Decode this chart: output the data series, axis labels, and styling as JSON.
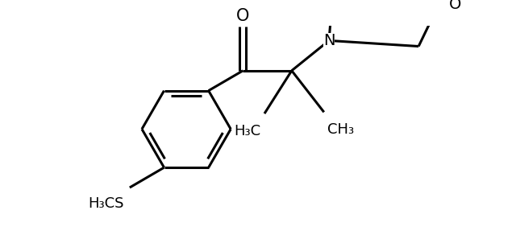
{
  "background": "#ffffff",
  "line_color": "#000000",
  "line_width": 2.2,
  "font_size": 13,
  "figure_size": [
    6.4,
    2.92
  ],
  "dpi": 100,
  "O_label": "O",
  "N_label": "N",
  "O_morph_label": "O",
  "methyl1_label": "H₃C",
  "methyl2_label": "CH₃",
  "thio_label": "H₃CS"
}
